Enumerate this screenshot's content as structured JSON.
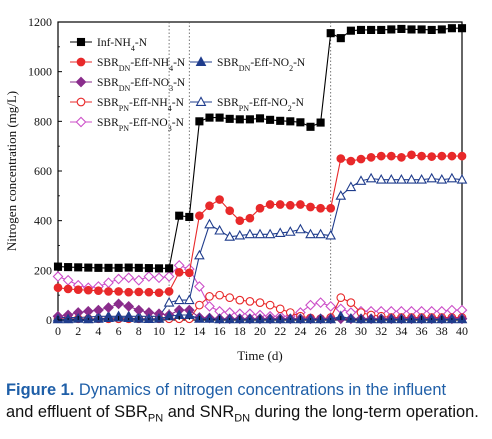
{
  "chart_data": {
    "type": "line",
    "xlabel": "Time (d)",
    "ylabel": "Nitrogen concentration (mg/L)",
    "xlim": [
      0,
      40
    ],
    "ylim": [
      0,
      1200
    ],
    "xticks": [
      0,
      2,
      4,
      6,
      8,
      10,
      12,
      14,
      16,
      18,
      20,
      22,
      24,
      26,
      28,
      30,
      32,
      34,
      36,
      38,
      40
    ],
    "yticks": [
      0,
      200,
      400,
      600,
      800,
      1000,
      1200
    ],
    "phase_dividers_x": [
      11,
      13,
      27
    ],
    "legend_position": "top-left",
    "series": [
      {
        "name": "Inf-NH4-N",
        "base": "Inf-NH",
        "sub": "4",
        "suffix": "-N",
        "marker": "square",
        "filled": true,
        "color": "#000000",
        "x": [
          0,
          1,
          2,
          3,
          4,
          5,
          6,
          7,
          8,
          9,
          10,
          11,
          12,
          13,
          14,
          15,
          16,
          17,
          18,
          19,
          20,
          21,
          22,
          23,
          24,
          25,
          26,
          27,
          28,
          29,
          30,
          31,
          32,
          33,
          34,
          35,
          36,
          37,
          38,
          39,
          40
        ],
        "y": [
          215,
          213,
          212,
          211,
          210,
          210,
          210,
          211,
          210,
          209,
          208,
          208,
          420,
          415,
          800,
          815,
          815,
          810,
          808,
          808,
          812,
          806,
          802,
          800,
          796,
          778,
          795,
          1155,
          1135,
          1165,
          1168,
          1168,
          1168,
          1170,
          1172,
          1170,
          1170,
          1168,
          1170,
          1175,
          1175
        ]
      },
      {
        "name": "SBRDN-Eff-NH4-N",
        "base": "SBR",
        "sub": "DN",
        "mid": "-Eff-NH",
        "sub2": "4",
        "suffix": "-N",
        "marker": "circle",
        "filled": true,
        "color": "#e8292a",
        "x": [
          0,
          1,
          2,
          3,
          4,
          5,
          6,
          7,
          8,
          9,
          10,
          11,
          12,
          13,
          14,
          15,
          16,
          17,
          18,
          19,
          20,
          21,
          22,
          23,
          24,
          25,
          26,
          27,
          28,
          29,
          30,
          31,
          32,
          33,
          34,
          35,
          36,
          37,
          38,
          39,
          40
        ],
        "y": [
          130,
          125,
          122,
          120,
          118,
          115,
          115,
          112,
          113,
          112,
          110,
          115,
          192,
          190,
          420,
          460,
          485,
          440,
          400,
          410,
          450,
          465,
          465,
          462,
          465,
          455,
          450,
          450,
          650,
          640,
          648,
          655,
          660,
          660,
          655,
          665,
          660,
          658,
          660,
          660,
          660
        ]
      },
      {
        "name": "SBRDN-Eff-NO2-N",
        "base": "SBR",
        "sub": "DN",
        "mid": "-Eff-NO",
        "sub2": "2",
        "suffix": "-N",
        "marker": "triangle",
        "filled": true,
        "color": "#1f3c8c",
        "x": [
          0,
          1,
          2,
          3,
          4,
          5,
          6,
          7,
          8,
          9,
          10,
          11,
          12,
          13,
          14,
          15,
          16,
          17,
          18,
          19,
          20,
          21,
          22,
          23,
          24,
          25,
          26,
          27,
          28,
          29,
          30,
          31,
          32,
          33,
          34,
          35,
          36,
          37,
          38,
          39,
          40
        ],
        "y": [
          3,
          3,
          5,
          3,
          5,
          8,
          10,
          8,
          5,
          4,
          5,
          15,
          20,
          20,
          5,
          5,
          3,
          3,
          3,
          3,
          3,
          3,
          3,
          3,
          3,
          3,
          3,
          3,
          15,
          5,
          3,
          3,
          3,
          3,
          3,
          3,
          3,
          3,
          3,
          3,
          3
        ]
      },
      {
        "name": "SBRDN-Eff-NO3-N",
        "base": "SBR",
        "sub": "DN",
        "mid": "-Eff-NO",
        "sub2": "3",
        "suffix": "-N",
        "marker": "diamond",
        "filled": true,
        "color": "#8a2d8c",
        "x": [
          0,
          1,
          2,
          3,
          4,
          5,
          6,
          7,
          8,
          9,
          10,
          11,
          12,
          13,
          14,
          15,
          16,
          17,
          18,
          19,
          20,
          21,
          22,
          23,
          24,
          25,
          26,
          27,
          28,
          29,
          30,
          31,
          32,
          33,
          34,
          35,
          36,
          37,
          38,
          39,
          40
        ],
        "y": [
          15,
          20,
          30,
          35,
          40,
          50,
          65,
          55,
          40,
          30,
          25,
          20,
          40,
          40,
          10,
          8,
          5,
          5,
          5,
          5,
          5,
          5,
          5,
          5,
          5,
          5,
          5,
          5,
          5,
          5,
          5,
          5,
          5,
          5,
          5,
          5,
          5,
          5,
          5,
          5,
          5
        ]
      },
      {
        "name": "SBRPN-Eff-NH4-N",
        "base": "SBR",
        "sub": "PN",
        "mid": "-Eff-NH",
        "sub2": "4",
        "suffix": "-N",
        "marker": "circle",
        "filled": false,
        "color": "#e8292a",
        "x": [
          0,
          1,
          2,
          3,
          4,
          5,
          6,
          7,
          8,
          9,
          10,
          11,
          12,
          13,
          14,
          15,
          16,
          17,
          18,
          19,
          20,
          21,
          22,
          23,
          24,
          25,
          26,
          27,
          28,
          29,
          30,
          31,
          32,
          33,
          34,
          35,
          36,
          37,
          38,
          39,
          40
        ],
        "y": [
          5,
          5,
          5,
          5,
          5,
          5,
          5,
          5,
          5,
          5,
          5,
          5,
          5,
          5,
          60,
          95,
          100,
          90,
          80,
          75,
          70,
          60,
          45,
          30,
          15,
          8,
          5,
          10,
          90,
          70,
          30,
          20,
          15,
          10,
          10,
          10,
          10,
          10,
          10,
          10,
          10
        ]
      },
      {
        "name": "SBRPN-Eff-NO2-N",
        "base": "SBR",
        "sub": "PN",
        "mid": "-Eff-NO",
        "sub2": "2",
        "suffix": "-N",
        "marker": "triangle",
        "filled": false,
        "color": "#1f3c8c",
        "x": [
          0,
          1,
          2,
          3,
          4,
          5,
          6,
          7,
          8,
          9,
          10,
          11,
          12,
          13,
          14,
          15,
          16,
          17,
          18,
          19,
          20,
          21,
          22,
          23,
          24,
          25,
          26,
          27,
          28,
          29,
          30,
          31,
          32,
          33,
          34,
          35,
          36,
          37,
          38,
          39,
          40
        ],
        "y": [
          10,
          10,
          10,
          12,
          15,
          15,
          15,
          15,
          15,
          15,
          15,
          70,
          80,
          80,
          260,
          385,
          360,
          335,
          340,
          345,
          345,
          345,
          350,
          355,
          365,
          345,
          345,
          340,
          500,
          535,
          560,
          570,
          565,
          565,
          565,
          565,
          565,
          570,
          565,
          570,
          565
        ]
      },
      {
        "name": "SBRPN-Eff-NO3-N",
        "base": "SBR",
        "sub": "PN",
        "mid": "-Eff-NO",
        "sub2": "3",
        "suffix": "-N",
        "marker": "diamond",
        "filled": false,
        "color": "#cc4fc8",
        "x": [
          0,
          1,
          2,
          3,
          4,
          5,
          6,
          7,
          8,
          9,
          10,
          11,
          12,
          13,
          14,
          15,
          16,
          17,
          18,
          19,
          20,
          21,
          22,
          23,
          24,
          25,
          26,
          27,
          28,
          29,
          30,
          31,
          32,
          33,
          34,
          35,
          36,
          37,
          38,
          39,
          40
        ],
        "y": [
          175,
          160,
          140,
          130,
          135,
          150,
          165,
          170,
          160,
          175,
          170,
          175,
          220,
          205,
          135,
          55,
          35,
          30,
          25,
          25,
          20,
          15,
          15,
          15,
          30,
          60,
          70,
          55,
          45,
          30,
          35,
          35,
          35,
          35,
          35,
          35,
          35,
          35,
          35,
          40,
          40
        ]
      }
    ]
  },
  "caption": {
    "label": "Figure 1.",
    "title": "Dynamics of nitrogen concentrations in the influent",
    "line2_pre": "and effluent of SBR",
    "sub_pn": "PN",
    "line2_mid": " and SNR",
    "sub_dn": "DN",
    "line2_post": " during the long-term operation."
  }
}
